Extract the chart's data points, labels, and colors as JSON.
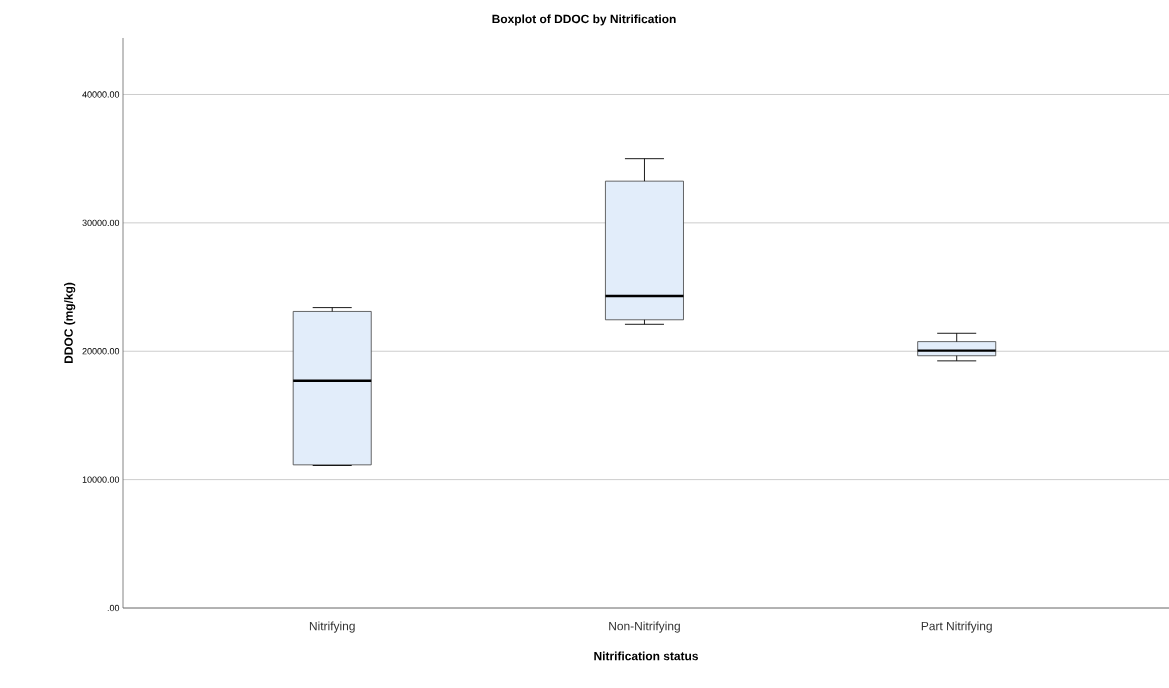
{
  "chart_data": {
    "type": "box",
    "title": "Boxplot of DDOC by Nitrification",
    "xlabel": "Nitrification status",
    "ylabel": "DDOC (mg/kg)",
    "categories": [
      "Nitrifying",
      "Non-Nitrifying",
      "Part Nitrifying"
    ],
    "boxes": [
      {
        "low": 11100,
        "q1": 11150,
        "median": 17700,
        "q3": 23100,
        "high": 23400
      },
      {
        "low": 22100,
        "q1": 22450,
        "median": 24300,
        "q3": 33250,
        "high": 35000
      },
      {
        "low": 19250,
        "q1": 19650,
        "median": 20050,
        "q3": 20750,
        "high": 21400
      }
    ],
    "color": "#e2edfa",
    "ylim": [
      0,
      44400
    ],
    "yticks": [
      {
        "value": 0,
        "label": ".00"
      },
      {
        "value": 10000,
        "label": "10000.00"
      },
      {
        "value": 20000,
        "label": "20000.00"
      },
      {
        "value": 30000,
        "label": "30000.00"
      },
      {
        "value": 40000,
        "label": "40000.00"
      }
    ],
    "grid": "y"
  }
}
